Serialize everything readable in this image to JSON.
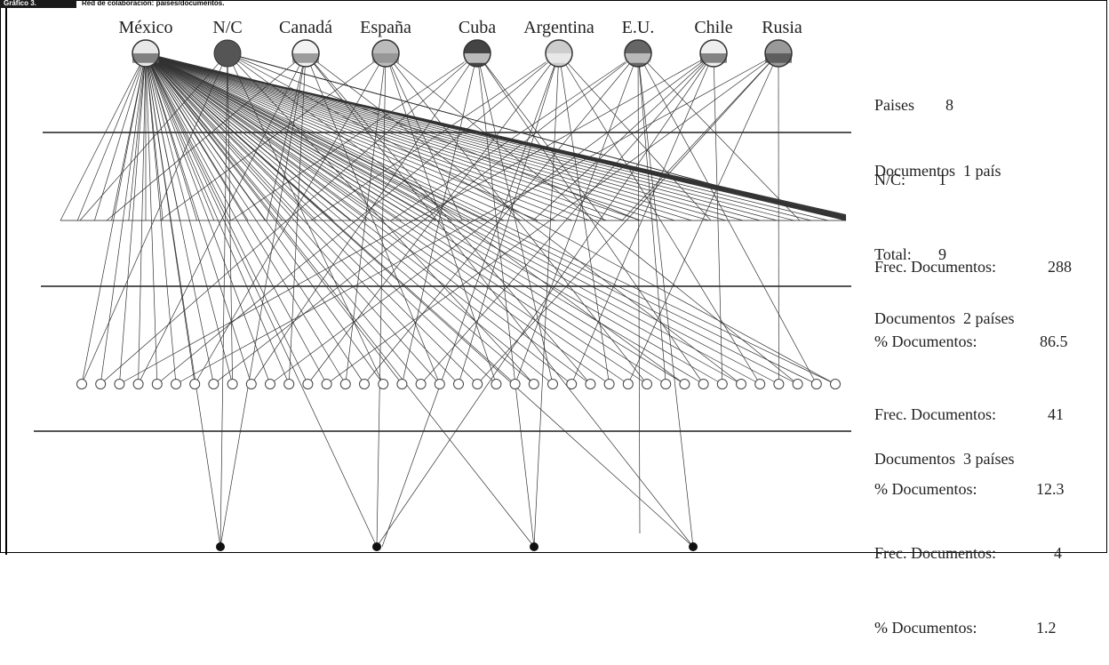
{
  "figure": {
    "label": "Gráfico 3.",
    "title": "Red de colaboración: países/documentos."
  },
  "countries": [
    {
      "name": "México",
      "flag": "mexico"
    },
    {
      "name": "N/C",
      "flag": "none"
    },
    {
      "name": "Canadá",
      "flag": "canada"
    },
    {
      "name": "España",
      "flag": "spain"
    },
    {
      "name": "Cuba",
      "flag": "cuba"
    },
    {
      "name": "Argentina",
      "flag": "argentina"
    },
    {
      "name": "E.U.",
      "flag": "usa"
    },
    {
      "name": "Chile",
      "flag": "chile"
    },
    {
      "name": "Rusia",
      "flag": "russia"
    }
  ],
  "summary": {
    "paises_label": "Paises",
    "paises_value": "8",
    "nc_label": "N/C:",
    "nc_value": "1",
    "total_label": "Total:",
    "total_value": "9"
  },
  "groups": [
    {
      "title": "Documentos  1 país",
      "freq_label": "Frec. Documentos:",
      "freq_value": "288",
      "pct_label": "% Documentos:",
      "pct_value": "86.5"
    },
    {
      "title": "Documentos  2 países",
      "freq_label": "Frec. Documentos:",
      "freq_value": "41",
      "pct_label": "% Documentos:",
      "pct_value": "12.3"
    },
    {
      "title": "Documentos  3 países",
      "freq_label": "Frec. Documentos:",
      "freq_value": "4",
      "pct_label": "% Documentos:",
      "pct_value": "1.2"
    }
  ],
  "colors": {
    "line": "#333333",
    "rule": "#555555",
    "node_fill": "#ffffff",
    "node_dark": "#111111"
  }
}
